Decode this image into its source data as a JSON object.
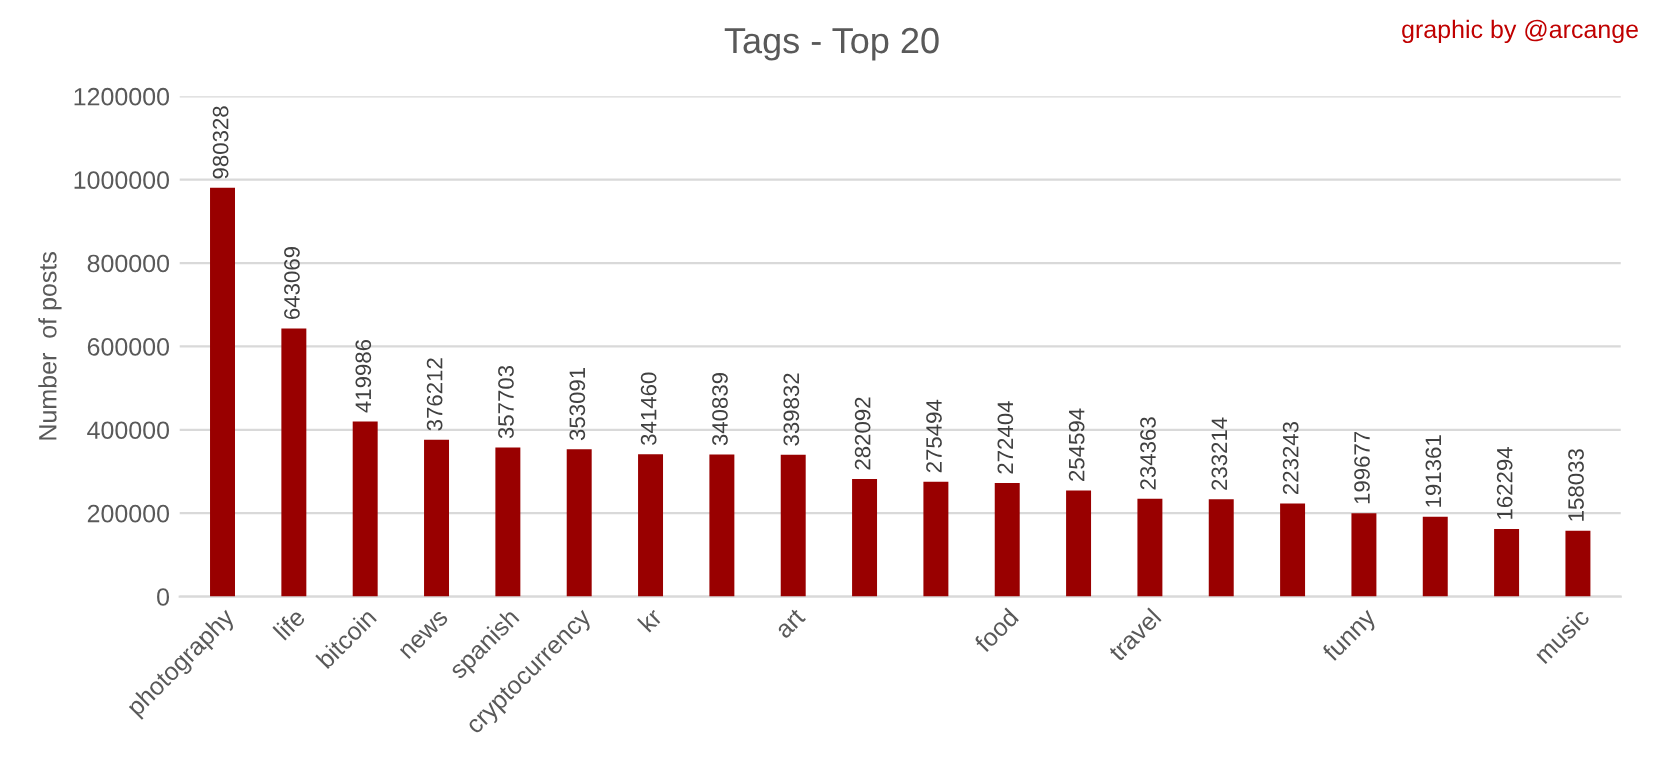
{
  "chart_data": {
    "type": "bar",
    "title": "Tags - Top 20",
    "ylabel": "Number  of posts",
    "annotations": [
      "graphic by @arcange"
    ],
    "categories": [
      "photography",
      "life",
      "bitcoin",
      "news",
      "spanish",
      "cryptocurrency",
      "kr",
      null,
      "art",
      null,
      null,
      "food",
      null,
      "travel",
      null,
      null,
      "funny",
      null,
      null,
      "music"
    ],
    "series": [
      {
        "color": "#990000",
        "values": [
          980328,
          643069,
          419986,
          376212,
          357703,
          353091,
          341460,
          340839,
          339832,
          282092,
          275494,
          272404,
          254594,
          234363,
          233214,
          223243,
          199677,
          191361,
          162294,
          158033
        ]
      }
    ],
    "ylim": [
      0,
      1200000
    ],
    "yticks": [
      0,
      200000,
      400000,
      600000,
      800000,
      1000000,
      1200000
    ],
    "grid": "y",
    "legend": false,
    "data_labels": true
  }
}
